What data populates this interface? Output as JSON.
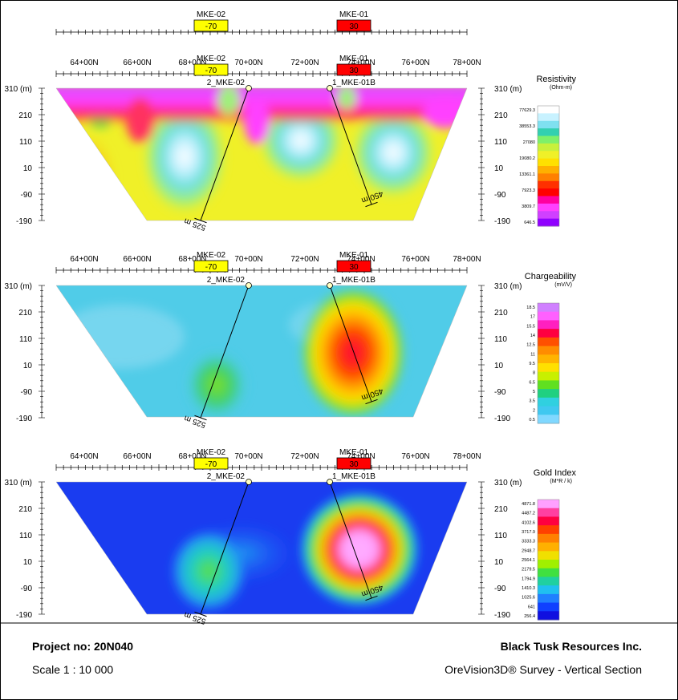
{
  "top_ruler": {
    "markers": [
      {
        "label": "MKE-02",
        "value": "-70",
        "color": "#ffff00"
      },
      {
        "label": "MKE-01",
        "value": "30",
        "color": "#ff0000"
      }
    ]
  },
  "panels": [
    {
      "title": "Resistivity",
      "unit": "(Ohm-m)",
      "legend_values": [
        "77629.3",
        "38553.3",
        "27080",
        "19080.2",
        "13361.1",
        "7923.3",
        "3809.7",
        "646.5"
      ],
      "legend_colors": [
        "#ffffff",
        "#c8f2ff",
        "#7fe0f0",
        "#33d0b0",
        "#7ef06a",
        "#c8f03c",
        "#f0f028",
        "#ffe000",
        "#ffb000",
        "#ff8000",
        "#ff3000",
        "#ff0000",
        "#ff00a0",
        "#ff40ff",
        "#d040ff",
        "#9000ff"
      ]
    },
    {
      "title": "Chargeability",
      "unit": "(mV/V)",
      "legend_values": [
        "18.5",
        "17",
        "15.5",
        "14",
        "12.5",
        "11",
        "9.5",
        "8",
        "6.5",
        "5",
        "3.5",
        "2",
        "0.5"
      ],
      "legend_colors": [
        "#d080ff",
        "#ff60ff",
        "#ff20c0",
        "#ff0040",
        "#ff5000",
        "#ff8c00",
        "#ffb400",
        "#ffe000",
        "#c8f000",
        "#60e020",
        "#20d080",
        "#30d0e0",
        "#40c8f0",
        "#80d8ff"
      ]
    },
    {
      "title": "Gold Index",
      "unit": "(M*R / k)",
      "legend_values": [
        "4871.8",
        "4487.2",
        "4102.6",
        "3717.9",
        "3333.3",
        "2948.7",
        "2564.1",
        "2179.5",
        "1794.9",
        "1410.3",
        "1025.6",
        "641",
        "256.4"
      ],
      "legend_colors": [
        "#ffa0ff",
        "#ff40a0",
        "#ff0040",
        "#ff4000",
        "#ff8000",
        "#ffb000",
        "#f0e000",
        "#a0f000",
        "#40e040",
        "#20d0a0",
        "#20c0f0",
        "#2080ff",
        "#1040ff",
        "#1010e0"
      ]
    }
  ],
  "x_ticks": [
    "64+00N",
    "66+00N",
    "68+00N",
    "70+00N",
    "72+00N",
    "74+00N",
    "76+00N",
    "78+00N"
  ],
  "y_ticks": [
    "310 (m)",
    "210",
    "110",
    "10",
    "-90",
    "-190"
  ],
  "holes": [
    {
      "name": "2_MKE-02",
      "length": "525 m"
    },
    {
      "name": "1_MKE-01B",
      "length": "450 m"
    }
  ],
  "footer": {
    "project": "Project no: 20N040",
    "scale": "Scale 1 : 10 000",
    "company": "Black Tusk Resources Inc.",
    "survey": "OreVision3D® Survey - Vertical Section"
  }
}
